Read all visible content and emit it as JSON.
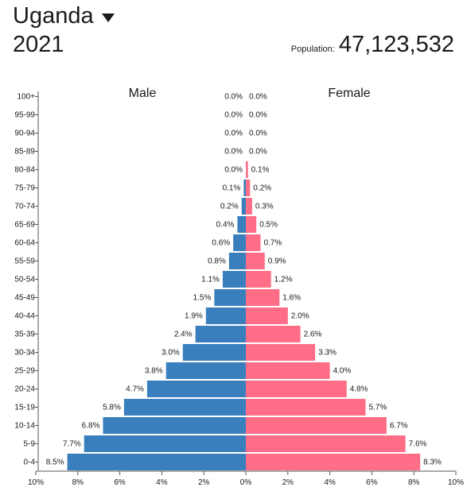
{
  "header": {
    "country": "Uganda",
    "year": "2021",
    "population_label": "Population:",
    "population_value": "47,123,532",
    "dropdown_icon": "caret-down-icon"
  },
  "colors": {
    "male": "#3a7fbd",
    "female": "#ff6e86"
  },
  "chart_data": {
    "type": "bar",
    "orientation": "horizontal-population-pyramid",
    "series": [
      {
        "name": "Male",
        "values": [
          8.5,
          7.7,
          6.8,
          5.8,
          4.7,
          3.8,
          3.0,
          2.4,
          1.9,
          1.5,
          1.1,
          0.8,
          0.6,
          0.4,
          0.2,
          0.1,
          0.0,
          0.0,
          0.0,
          0.0,
          0.0
        ],
        "labels": [
          "8.5%",
          "7.7%",
          "6.8%",
          "5.8%",
          "4.7%",
          "3.8%",
          "3.0%",
          "2.4%",
          "1.9%",
          "1.5%",
          "1.1%",
          "0.8%",
          "0.6%",
          "0.4%",
          "0.2%",
          "0.1%",
          "0.0%",
          "0.0%",
          "0.0%",
          "0.0%",
          "0.0%"
        ]
      },
      {
        "name": "Female",
        "values": [
          8.3,
          7.6,
          6.7,
          5.7,
          4.8,
          4.0,
          3.3,
          2.6,
          2.0,
          1.6,
          1.2,
          0.9,
          0.7,
          0.5,
          0.3,
          0.2,
          0.1,
          0.0,
          0.0,
          0.0,
          0.0
        ],
        "labels": [
          "8.3%",
          "7.6%",
          "6.7%",
          "5.7%",
          "4.8%",
          "4.0%",
          "3.3%",
          "2.6%",
          "2.0%",
          "1.6%",
          "1.2%",
          "0.9%",
          "0.7%",
          "0.5%",
          "0.3%",
          "0.2%",
          "0.1%",
          "0.0%",
          "0.0%",
          "0.0%",
          "0.0%"
        ]
      }
    ],
    "categories": [
      "0-4",
      "5-9",
      "10-14",
      "15-19",
      "20-24",
      "25-29",
      "30-34",
      "35-39",
      "40-44",
      "45-49",
      "50-54",
      "55-59",
      "60-64",
      "65-69",
      "70-74",
      "75-79",
      "80-84",
      "85-89",
      "90-94",
      "95-99",
      "100+"
    ],
    "xticks": [
      "10%",
      "8%",
      "6%",
      "4%",
      "2%",
      "0%",
      "2%",
      "4%",
      "6%",
      "8%",
      "10%"
    ],
    "xlim": [
      -10,
      10
    ],
    "grid": false
  }
}
